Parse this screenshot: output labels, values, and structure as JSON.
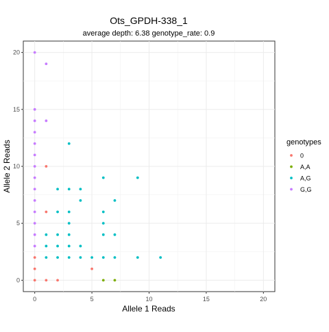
{
  "chart_data": {
    "type": "scatter",
    "title": "Ots_GPDH-338_1",
    "subtitle": "average depth:  6.38  genotype_rate:  0.9",
    "xlabel": "Allele 1 Reads",
    "ylabel": "Allele 2 Reads",
    "xlim": [
      -1,
      21
    ],
    "ylim": [
      -1,
      21
    ],
    "xticks": [
      0,
      5,
      10,
      15,
      20
    ],
    "yticks": [
      0,
      5,
      10,
      15,
      20
    ],
    "grid": true,
    "legend": {
      "title": "genotypes",
      "placement": "right"
    },
    "series": [
      {
        "name": "0",
        "color": "#F8766D",
        "points": [
          [
            0,
            0
          ],
          [
            1,
            0
          ],
          [
            2,
            0
          ],
          [
            0,
            1
          ],
          [
            5,
            1
          ],
          [
            0,
            2
          ],
          [
            1,
            6
          ],
          [
            1,
            10
          ]
        ]
      },
      {
        "name": "A,A",
        "color": "#7CAE00",
        "points": [
          [
            6,
            0
          ],
          [
            7,
            0
          ]
        ]
      },
      {
        "name": "A,G",
        "color": "#00BFC4",
        "points": [
          [
            1,
            2
          ],
          [
            2,
            2
          ],
          [
            3,
            2
          ],
          [
            4,
            2
          ],
          [
            5,
            2
          ],
          [
            6,
            2
          ],
          [
            7,
            2
          ],
          [
            9,
            2
          ],
          [
            11,
            2
          ],
          [
            1,
            3
          ],
          [
            2,
            3
          ],
          [
            3,
            3
          ],
          [
            4,
            3
          ],
          [
            1,
            4
          ],
          [
            2,
            4
          ],
          [
            3,
            4
          ],
          [
            6,
            4
          ],
          [
            7,
            4
          ],
          [
            3,
            5
          ],
          [
            6,
            5
          ],
          [
            2,
            6
          ],
          [
            3,
            6
          ],
          [
            6,
            6
          ],
          [
            4,
            7
          ],
          [
            7,
            7
          ],
          [
            2,
            8
          ],
          [
            3,
            8
          ],
          [
            4,
            8
          ],
          [
            6,
            9
          ],
          [
            9,
            9
          ],
          [
            3,
            12
          ]
        ]
      },
      {
        "name": "G,G",
        "color": "#C77CFF",
        "points": [
          [
            0,
            3
          ],
          [
            0,
            4
          ],
          [
            0,
            5
          ],
          [
            0,
            6
          ],
          [
            0,
            7
          ],
          [
            0,
            8
          ],
          [
            0,
            9
          ],
          [
            0,
            10
          ],
          [
            0,
            11
          ],
          [
            0,
            12
          ],
          [
            0,
            13
          ],
          [
            0,
            14
          ],
          [
            0,
            15
          ],
          [
            1,
            14
          ],
          [
            1,
            19
          ],
          [
            0,
            20
          ]
        ]
      }
    ]
  }
}
